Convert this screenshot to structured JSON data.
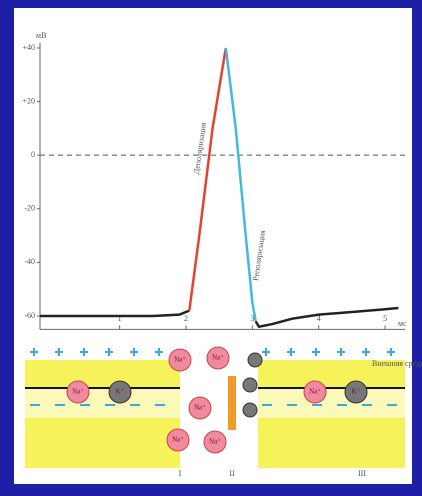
{
  "chart_data": {
    "type": "line",
    "y_label": "мВ",
    "x_label": "мс",
    "xlim": [
      -0.2,
      5.3
    ],
    "ylim": [
      -65,
      42
    ],
    "xticks": [
      1,
      2,
      3,
      4,
      5
    ],
    "yticks": [
      {
        "value": 40,
        "label": "+40"
      },
      {
        "value": 20,
        "label": "+20"
      },
      0,
      -20,
      -40,
      -60
    ],
    "zero_line": true,
    "series": [
      {
        "color": "#222222",
        "x": [
          -0.2,
          0.5,
          1,
          1.5,
          1.9,
          2.05
        ],
        "values": [
          -60,
          -60,
          -60,
          -60,
          -59.5,
          -58
        ]
      },
      {
        "name": "Деполяризация",
        "color": "#e8412c",
        "x": [
          2.05,
          2.2,
          2.4,
          2.6
        ],
        "values": [
          -58,
          -30,
          10,
          40
        ]
      },
      {
        "name": "Реполяризация",
        "color": "#45b8de",
        "x": [
          2.6,
          2.75,
          2.9,
          3.0,
          3.05
        ],
        "values": [
          40,
          10,
          -30,
          -55,
          -62
        ]
      },
      {
        "color": "#222222",
        "x": [
          3.05,
          3.1,
          3.3,
          3.6,
          4,
          4.5,
          5,
          5.2
        ],
        "values": [
          -62,
          -64,
          -63,
          -61,
          -59.5,
          -58.5,
          -57.5,
          -57
        ]
      }
    ]
  },
  "diagram": {
    "sodium": "Na⁺",
    "potassium": "K⁺",
    "stages": [
      "I",
      "II",
      "III"
    ],
    "outside_label": "Внешняя среда"
  }
}
